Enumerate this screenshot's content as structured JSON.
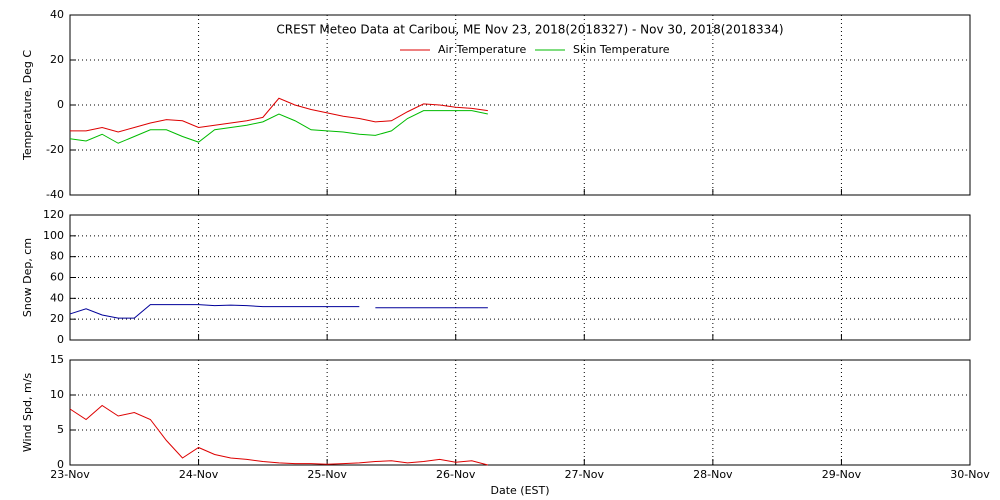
{
  "chart_data": [
    {
      "type": "line",
      "title": "CREST Meteo Data at Caribou, ME   Nov 23, 2018(2018327) - Nov 30, 2018(2018334)",
      "y_label": "Temperature, Deg C",
      "x": [
        23,
        23.125,
        23.25,
        23.375,
        23.5,
        23.625,
        23.75,
        23.875,
        24,
        24.125,
        24.25,
        24.375,
        24.5,
        24.625,
        24.75,
        24.875,
        25,
        25.125,
        25.25,
        25.375,
        25.5,
        25.625,
        25.75,
        25.875,
        26,
        26.125,
        26.25
      ],
      "series": [
        {
          "name": "Air Temperature",
          "color": "#dd0000",
          "values": [
            -11.5,
            -11.5,
            -10,
            -12,
            -10,
            -8,
            -6.5,
            -7,
            -10,
            -9,
            -8,
            -7,
            -5.5,
            3,
            0,
            -2,
            -3.5,
            -5,
            -6,
            -7.5,
            -7,
            -3,
            0.5,
            0,
            -1,
            -1.5,
            -2.5
          ]
        },
        {
          "name": "Skin Temperature",
          "color": "#00bb00",
          "values": [
            -15,
            -16,
            -13,
            -17,
            -14,
            -11,
            -11,
            -14,
            -16.5,
            -11,
            -10,
            -9,
            -7.5,
            -4,
            -7,
            -11,
            -11.5,
            -12,
            -13,
            -13.5,
            -11.5,
            -6,
            -2.5,
            -2.5,
            -2.5,
            -2.5,
            -4
          ]
        }
      ],
      "xlim": [
        23,
        30
      ],
      "xticks": [
        23,
        24,
        25,
        26,
        27,
        28,
        29,
        30
      ],
      "ylim": [
        -40,
        40
      ],
      "yticks": [
        -40,
        -20,
        0,
        20,
        40
      ],
      "grid": true
    },
    {
      "type": "line",
      "y_label": "Snow Dep, cm",
      "x": [
        23,
        23.125,
        23.25,
        23.375,
        23.5,
        23.625,
        23.75,
        23.875,
        24,
        24.125,
        24.25,
        24.375,
        24.5,
        24.625,
        24.75,
        24.875,
        25,
        25.125,
        25.25,
        25.3,
        25.375,
        25.5,
        25.625,
        25.75,
        25.875,
        26,
        26.125,
        26.25
      ],
      "series": [
        {
          "color": "#000099",
          "values": [
            25,
            30,
            24,
            21,
            21,
            34,
            34,
            34,
            34,
            33,
            33.5,
            33,
            32,
            32,
            32,
            32,
            32,
            32,
            32,
            null,
            31,
            31,
            31,
            31,
            31,
            31,
            31,
            31
          ]
        }
      ],
      "xlim": [
        23,
        30
      ],
      "xticks": [
        23,
        24,
        25,
        26,
        27,
        28,
        29,
        30
      ],
      "ylim": [
        0,
        120
      ],
      "yticks": [
        0,
        20,
        40,
        60,
        80,
        100,
        120
      ],
      "grid": true
    },
    {
      "type": "line",
      "y_label": "Wind Spd, m/s",
      "x_label": "Date (EST)",
      "x": [
        23,
        23.125,
        23.25,
        23.375,
        23.5,
        23.625,
        23.75,
        23.875,
        24,
        24.125,
        24.25,
        24.375,
        24.5,
        24.625,
        24.75,
        24.875,
        25,
        25.125,
        25.25,
        25.375,
        25.5,
        25.625,
        25.75,
        25.875,
        26,
        26.125,
        26.25
      ],
      "series": [
        {
          "color": "#dd0000",
          "values": [
            8,
            6.5,
            8.5,
            7,
            7.5,
            6.5,
            3.5,
            1,
            2.5,
            1.5,
            1,
            0.8,
            0.5,
            0.3,
            0.2,
            0.2,
            0.1,
            0.2,
            0.3,
            0.5,
            0.6,
            0.3,
            0.5,
            0.8,
            0.4,
            0.6,
            0
          ]
        }
      ],
      "xlim": [
        23,
        30
      ],
      "xticks": [
        {
          "value": 23,
          "label": "23-Nov"
        },
        {
          "value": 24,
          "label": "24-Nov"
        },
        {
          "value": 25,
          "label": "25-Nov"
        },
        {
          "value": 26,
          "label": "26-Nov"
        },
        {
          "value": 27,
          "label": "27-Nov"
        },
        {
          "value": 28,
          "label": "28-Nov"
        },
        {
          "value": 29,
          "label": "29-Nov"
        },
        {
          "value": 30,
          "label": "30-Nov"
        }
      ],
      "ylim": [
        0,
        15
      ],
      "yticks": [
        0,
        5,
        10,
        15
      ],
      "grid": true
    }
  ]
}
